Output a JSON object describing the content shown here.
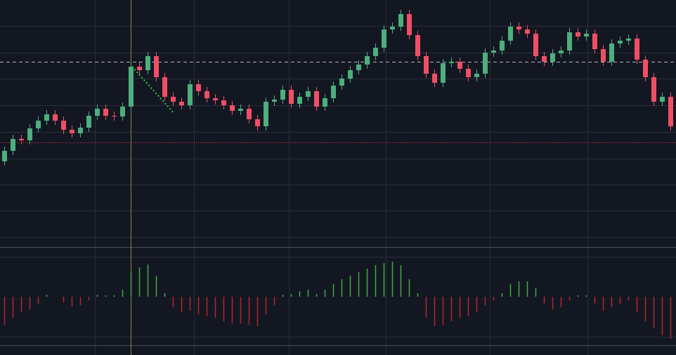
{
  "chart_data": {
    "type": "candlestick",
    "ylim": [
      0,
      352
    ],
    "yticks": [
      14,
      52,
      89,
      126,
      164,
      202,
      240,
      277,
      315
    ],
    "grid": true,
    "up_color": "#4caf7d",
    "down_color": "#ef4f65",
    "open": [
      122,
      137,
      154,
      152,
      169,
      180,
      189,
      180,
      167,
      162,
      170,
      187,
      197,
      187,
      186,
      200,
      257,
      252,
      272,
      242,
      214,
      207,
      202,
      232,
      222,
      212,
      209,
      202,
      194,
      197,
      182,
      172,
      207,
      210,
      224,
      204,
      214,
      222,
      200,
      212,
      230,
      240,
      252,
      260,
      272,
      284,
      310,
      314,
      332,
      302,
      272,
      247,
      234,
      262,
      264,
      254,
      242,
      247,
      277,
      280,
      294,
      314,
      310,
      304,
      272,
      264,
      276,
      280,
      306,
      300,
      304,
      282,
      264,
      290,
      294,
      297,
      267,
      242,
      207,
      214
    ],
    "high": [
      143,
      160,
      160,
      175,
      186,
      195,
      195,
      186,
      173,
      176,
      193,
      203,
      203,
      193,
      206,
      263,
      263,
      278,
      278,
      248,
      220,
      213,
      238,
      238,
      228,
      218,
      215,
      208,
      203,
      203,
      188,
      213,
      216,
      230,
      230,
      220,
      228,
      228,
      218,
      236,
      246,
      258,
      266,
      278,
      290,
      316,
      320,
      338,
      338,
      308,
      278,
      253,
      268,
      270,
      270,
      260,
      253,
      283,
      286,
      300,
      320,
      320,
      316,
      310,
      278,
      282,
      286,
      312,
      312,
      310,
      310,
      288,
      296,
      300,
      303,
      303,
      273,
      248,
      220,
      220
    ],
    "low": [
      116,
      131,
      146,
      146,
      163,
      174,
      174,
      161,
      156,
      156,
      164,
      181,
      181,
      180,
      180,
      194,
      246,
      246,
      236,
      208,
      201,
      196,
      196,
      216,
      206,
      203,
      196,
      188,
      188,
      176,
      166,
      166,
      201,
      204,
      198,
      198,
      208,
      194,
      194,
      206,
      224,
      234,
      246,
      254,
      266,
      278,
      304,
      308,
      296,
      266,
      241,
      228,
      228,
      256,
      248,
      236,
      236,
      241,
      271,
      274,
      288,
      304,
      298,
      266,
      258,
      258,
      270,
      274,
      294,
      294,
      276,
      258,
      258,
      284,
      288,
      261,
      236,
      201,
      201,
      166
    ],
    "close": [
      137,
      154,
      152,
      169,
      180,
      189,
      180,
      167,
      162,
      170,
      187,
      197,
      187,
      186,
      200,
      257,
      252,
      272,
      242,
      214,
      207,
      202,
      232,
      222,
      212,
      209,
      202,
      194,
      197,
      182,
      172,
      207,
      210,
      224,
      204,
      214,
      222,
      200,
      212,
      230,
      240,
      252,
      260,
      272,
      284,
      310,
      314,
      332,
      302,
      272,
      247,
      234,
      262,
      264,
      254,
      242,
      247,
      277,
      280,
      294,
      314,
      310,
      304,
      272,
      264,
      276,
      280,
      306,
      300,
      304,
      282,
      264,
      290,
      294,
      297,
      267,
      242,
      207,
      214,
      172
    ],
    "reference_lines": [
      {
        "value": 264,
        "color": "#b2b5be",
        "style": "dashed"
      },
      {
        "value": 149,
        "color": "#f23645",
        "style": "dotted"
      }
    ],
    "histogram": {
      "y2lim": [
        -68,
        68
      ],
      "up_color": "#3fae3f",
      "down_color": "#b3262b",
      "values": [
        -40,
        -30,
        -22,
        -18,
        -10,
        3,
        0,
        -8,
        -14,
        -12,
        -5,
        3,
        2,
        2,
        10,
        35,
        42,
        46,
        30,
        5,
        -15,
        -22,
        -20,
        -25,
        -28,
        -30,
        -35,
        -38,
        -38,
        -40,
        -42,
        -25,
        -12,
        3,
        4,
        8,
        10,
        4,
        10,
        18,
        25,
        30,
        35,
        40,
        45,
        48,
        50,
        45,
        25,
        5,
        -30,
        -42,
        -40,
        -35,
        -30,
        -28,
        -22,
        -12,
        -5,
        5,
        18,
        22,
        22,
        12,
        -10,
        -18,
        -15,
        -5,
        2,
        2,
        -10,
        -20,
        -15,
        -10,
        -5,
        -22,
        -35,
        -45,
        -55,
        -60
      ]
    }
  }
}
